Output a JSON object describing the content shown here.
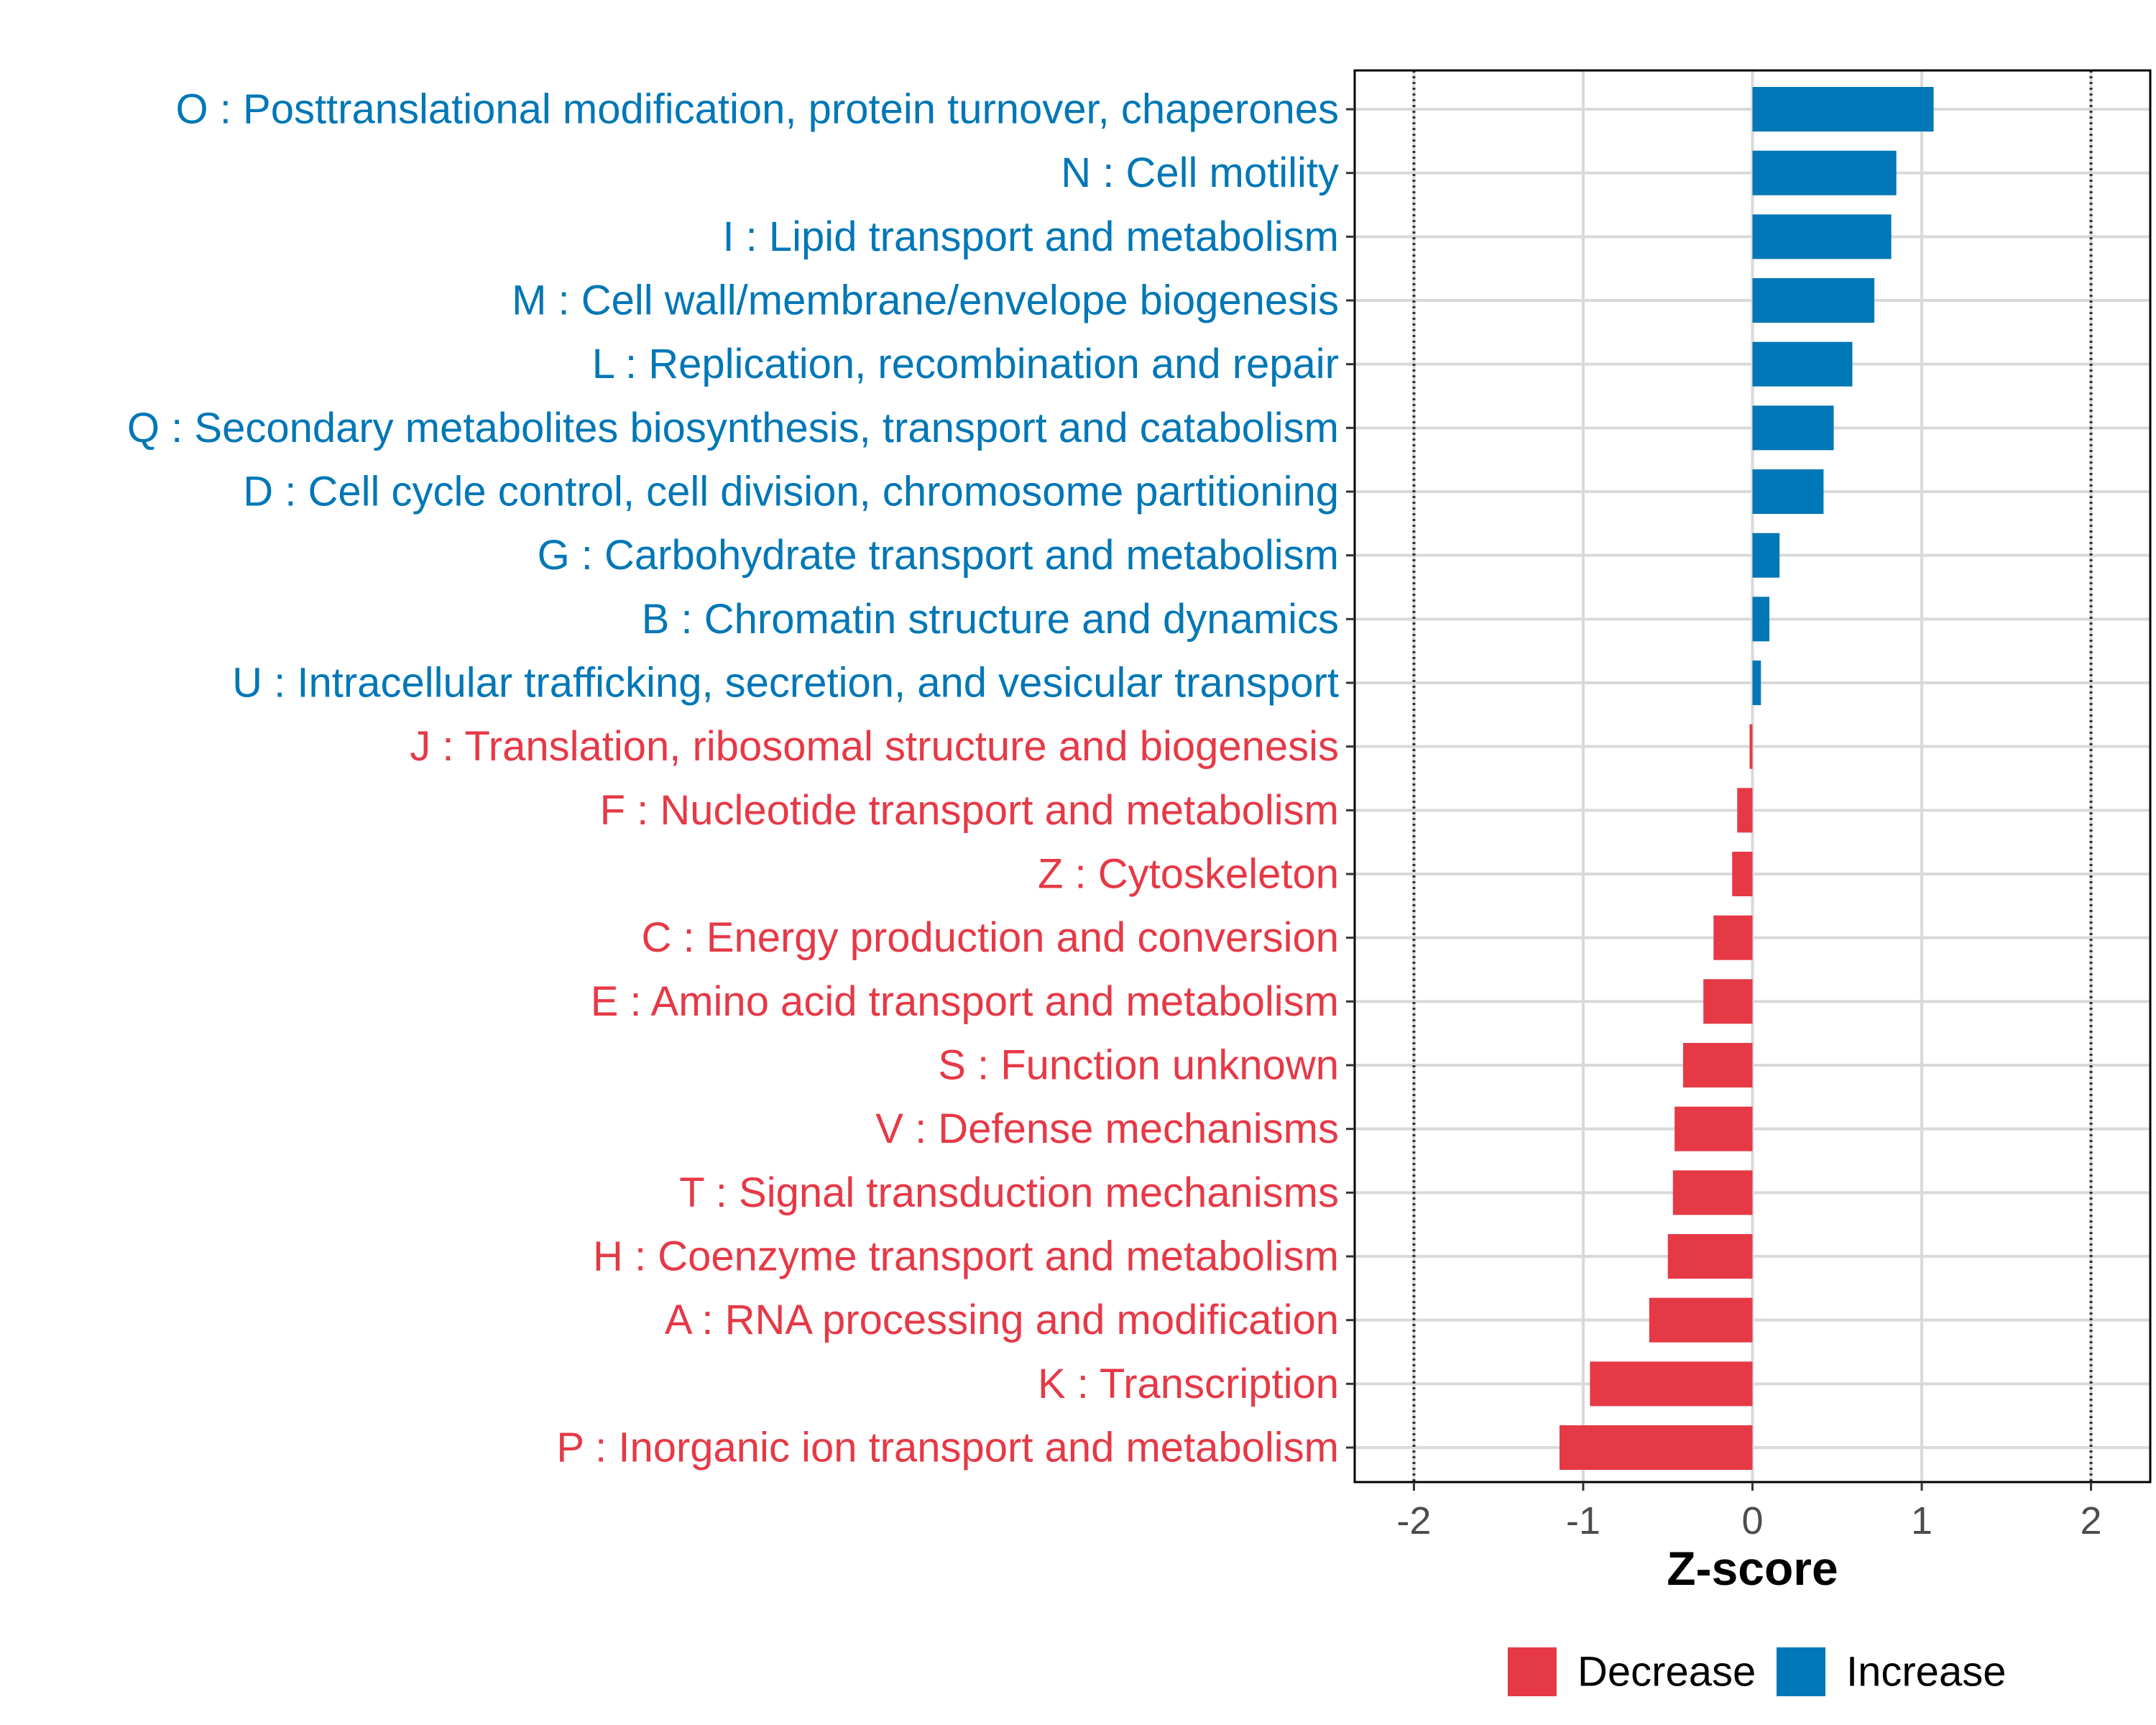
{
  "chart_data": {
    "type": "bar",
    "orientation": "horizontal",
    "xlabel": "Z-score",
    "xlim": [
      -2.35,
      2.35
    ],
    "xticks": [
      -2,
      -1,
      0,
      1,
      2
    ],
    "xtick_labels": [
      "-2",
      "-1",
      "0",
      "1",
      "2"
    ],
    "reference_lines": [
      -2,
      2
    ],
    "grid": true,
    "legend_position": "bottom",
    "legend": [
      {
        "name": "Decrease",
        "color": "#E63946"
      },
      {
        "name": "Increase",
        "color": "#0077B6"
      }
    ],
    "categories": [
      "O : Posttranslational modification, protein turnover, chaperones",
      "N : Cell motility",
      "I : Lipid transport and metabolism",
      "M : Cell wall/membrane/envelope biogenesis",
      "L : Replication, recombination and repair",
      "Q : Secondary metabolites biosynthesis, transport and catabolism",
      "D : Cell cycle control, cell division, chromosome partitioning",
      "G : Carbohydrate transport and metabolism",
      "B : Chromatin structure and dynamics",
      "U : Intracellular trafficking, secretion, and vesicular transport",
      "J : Translation, ribosomal structure and biogenesis",
      "F : Nucleotide transport and metabolism",
      "Z : Cytoskeleton",
      "C : Energy production and conversion",
      "E : Amino acid transport and metabolism",
      "S : Function unknown",
      "V : Defense mechanisms",
      "T : Signal transduction mechanisms",
      "H : Coenzyme transport and metabolism",
      "A : RNA processing and modification",
      "K : Transcription",
      "P : Inorganic ion transport and metabolism"
    ],
    "values": [
      1.07,
      0.85,
      0.82,
      0.72,
      0.59,
      0.48,
      0.42,
      0.16,
      0.1,
      0.05,
      -0.01,
      -0.09,
      -0.12,
      -0.23,
      -0.29,
      -0.41,
      -0.46,
      -0.47,
      -0.5,
      -0.61,
      -0.96,
      -1.14
    ],
    "groups": [
      "Increase",
      "Increase",
      "Increase",
      "Increase",
      "Increase",
      "Increase",
      "Increase",
      "Increase",
      "Increase",
      "Increase",
      "Decrease",
      "Decrease",
      "Decrease",
      "Decrease",
      "Decrease",
      "Decrease",
      "Decrease",
      "Decrease",
      "Decrease",
      "Decrease",
      "Decrease",
      "Decrease"
    ]
  }
}
